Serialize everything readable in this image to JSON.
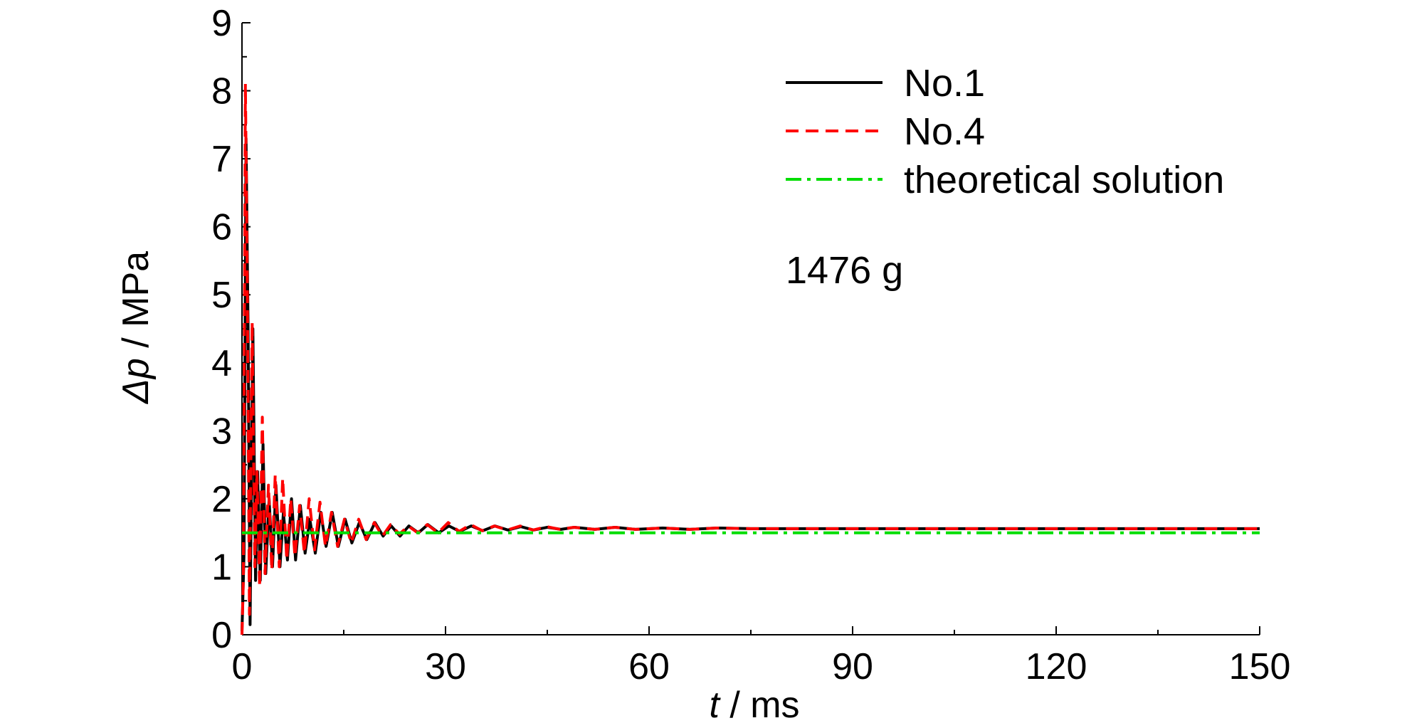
{
  "chart_data": {
    "type": "line",
    "title": "",
    "xlabel": {
      "var": "t",
      "unit": " / ms"
    },
    "ylabel": {
      "var": "Δp",
      "unit": " / MPa"
    },
    "xlim": [
      0,
      150
    ],
    "ylim": [
      0,
      9
    ],
    "xticks": [
      0,
      30,
      60,
      90,
      120,
      150
    ],
    "yticks": [
      0,
      1,
      2,
      3,
      4,
      5,
      6,
      7,
      8,
      9
    ],
    "grid": false,
    "legend_position": "top-right",
    "annotation": "1476 g",
    "series": [
      {
        "name": "No.1",
        "color": "#000000",
        "dash": "solid",
        "x": [
          0,
          0.3,
          0.6,
          0.9,
          1.2,
          1.6,
          2.0,
          2.3,
          2.7,
          3.1,
          3.5,
          4.0,
          4.5,
          5.0,
          5.6,
          6.1,
          6.7,
          7.3,
          7.9,
          8.6,
          9.3,
          10.0,
          10.8,
          11.6,
          12.4,
          13.3,
          14.2,
          15.2,
          16.2,
          17.3,
          18.4,
          19.6,
          20.8,
          22.0,
          23.3,
          24.6,
          26.0,
          27.4,
          29.0,
          30.5,
          32.1,
          33.8,
          35.5,
          37.3,
          39.2,
          41.1,
          43.0,
          45.0,
          47.0,
          49.0,
          52.0,
          55.0,
          58.0,
          62.0,
          66.0,
          70.0,
          75.0,
          80.0,
          90.0,
          100.0,
          110.0,
          120.0,
          130.0,
          140.0,
          150.0
        ],
        "y": [
          0.05,
          1.2,
          7.3,
          4.5,
          0.15,
          4.5,
          0.8,
          2.4,
          0.8,
          2.8,
          0.9,
          2.0,
          1.0,
          2.2,
          1.0,
          1.8,
          1.1,
          2.0,
          1.1,
          1.9,
          1.2,
          1.7,
          1.2,
          1.8,
          1.3,
          1.8,
          1.3,
          1.7,
          1.35,
          1.65,
          1.4,
          1.65,
          1.45,
          1.6,
          1.45,
          1.6,
          1.5,
          1.62,
          1.5,
          1.6,
          1.52,
          1.6,
          1.53,
          1.6,
          1.54,
          1.59,
          1.54,
          1.58,
          1.55,
          1.58,
          1.55,
          1.58,
          1.55,
          1.57,
          1.55,
          1.57,
          1.56,
          1.56,
          1.56,
          1.56,
          1.56,
          1.56,
          1.56,
          1.56,
          1.56
        ]
      },
      {
        "name": "No.4",
        "color": "#ff0000",
        "dash": "dashed",
        "x": [
          0,
          0.2,
          0.5,
          0.8,
          1.1,
          1.5,
          1.9,
          2.2,
          2.6,
          3.0,
          3.4,
          3.9,
          4.4,
          4.9,
          5.5,
          6.0,
          6.6,
          7.2,
          7.8,
          8.5,
          9.2,
          9.9,
          10.7,
          11.5,
          12.3,
          13.2,
          14.1,
          15.1,
          16.1,
          17.2,
          18.3,
          19.5,
          20.7,
          21.9,
          23.2,
          24.5,
          25.9,
          27.3,
          28.9,
          30.4,
          32.0,
          33.7,
          35.4,
          37.2,
          39.1,
          41.0,
          42.9,
          44.9,
          46.9,
          48.9,
          52.0,
          55.0,
          58.0,
          62.0,
          66.0,
          70.0,
          75.0,
          80.0,
          90.0,
          100.0,
          110.0,
          120.0,
          130.0,
          140.0,
          150.0
        ],
        "y": [
          0.0,
          0.8,
          8.1,
          5.0,
          0.3,
          4.6,
          1.0,
          2.4,
          0.7,
          3.2,
          0.9,
          2.2,
          0.95,
          2.35,
          1.0,
          2.3,
          1.1,
          2.0,
          1.15,
          1.9,
          1.2,
          2.0,
          1.25,
          1.95,
          1.3,
          1.8,
          1.3,
          1.7,
          1.35,
          1.7,
          1.4,
          1.65,
          1.45,
          1.62,
          1.48,
          1.6,
          1.5,
          1.62,
          1.5,
          1.65,
          1.52,
          1.62,
          1.53,
          1.6,
          1.54,
          1.6,
          1.54,
          1.59,
          1.55,
          1.58,
          1.55,
          1.58,
          1.55,
          1.57,
          1.55,
          1.57,
          1.56,
          1.56,
          1.56,
          1.56,
          1.56,
          1.56,
          1.56,
          1.56,
          1.56
        ]
      },
      {
        "name": "theoretical solution",
        "color": "#00dd00",
        "dash": "dashdot",
        "x": [
          0,
          150
        ],
        "y": [
          1.5,
          1.5
        ]
      }
    ]
  }
}
